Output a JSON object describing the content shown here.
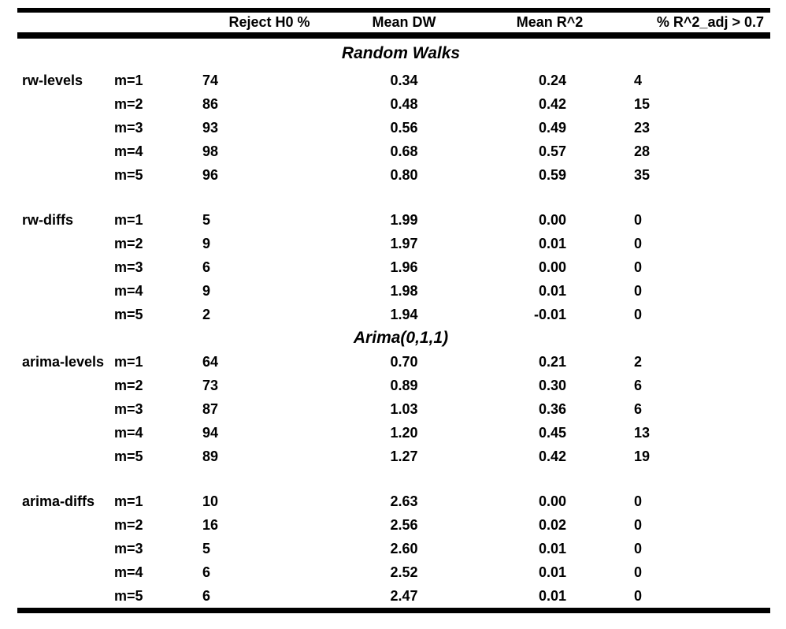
{
  "colors": {
    "background": "#ffffff",
    "text": "#000000",
    "rule": "#000000"
  },
  "table": {
    "columns": [
      "Reject H0 %",
      "Mean DW",
      "Mean R^2",
      "% R^2_adj > 0.7"
    ],
    "sections": [
      {
        "title": "Random Walks",
        "groups": [
          {
            "label": "rw-levels",
            "rows": [
              {
                "m": "m=1",
                "reject": "74",
                "dw": "0.34",
                "r2": "0.24",
                "r2adj": "4"
              },
              {
                "m": "m=2",
                "reject": "86",
                "dw": "0.48",
                "r2": "0.42",
                "r2adj": "15"
              },
              {
                "m": "m=3",
                "reject": "93",
                "dw": "0.56",
                "r2": "0.49",
                "r2adj": "23"
              },
              {
                "m": "m=4",
                "reject": "98",
                "dw": "0.68",
                "r2": "0.57",
                "r2adj": "28"
              },
              {
                "m": "m=5",
                "reject": "96",
                "dw": "0.80",
                "r2": "0.59",
                "r2adj": "35"
              }
            ]
          },
          {
            "label": "rw-diffs",
            "rows": [
              {
                "m": "m=1",
                "reject": "5",
                "dw": "1.99",
                "r2": "0.00",
                "r2adj": "0"
              },
              {
                "m": "m=2",
                "reject": "9",
                "dw": "1.97",
                "r2": "0.01",
                "r2adj": "0"
              },
              {
                "m": "m=3",
                "reject": "6",
                "dw": "1.96",
                "r2": "0.00",
                "r2adj": "0"
              },
              {
                "m": "m=4",
                "reject": "9",
                "dw": "1.98",
                "r2": "0.01",
                "r2adj": "0"
              },
              {
                "m": "m=5",
                "reject": "2",
                "dw": "1.94",
                "r2": "-0.01",
                "r2adj": "0"
              }
            ]
          }
        ]
      },
      {
        "title": "Arima(0,1,1)",
        "groups": [
          {
            "label": "arima-levels",
            "rows": [
              {
                "m": "m=1",
                "reject": "64",
                "dw": "0.70",
                "r2": "0.21",
                "r2adj": "2"
              },
              {
                "m": "m=2",
                "reject": "73",
                "dw": "0.89",
                "r2": "0.30",
                "r2adj": "6"
              },
              {
                "m": "m=3",
                "reject": "87",
                "dw": "1.03",
                "r2": "0.36",
                "r2adj": "6"
              },
              {
                "m": "m=4",
                "reject": "94",
                "dw": "1.20",
                "r2": "0.45",
                "r2adj": "13"
              },
              {
                "m": "m=5",
                "reject": "89",
                "dw": "1.27",
                "r2": "0.42",
                "r2adj": "19"
              }
            ]
          },
          {
            "label": "arima-diffs",
            "rows": [
              {
                "m": "m=1",
                "reject": "10",
                "dw": "2.63",
                "r2": "0.00",
                "r2adj": "0"
              },
              {
                "m": "m=2",
                "reject": "16",
                "dw": "2.56",
                "r2": "0.02",
                "r2adj": "0"
              },
              {
                "m": "m=3",
                "reject": "5",
                "dw": "2.60",
                "r2": "0.01",
                "r2adj": "0"
              },
              {
                "m": "m=4",
                "reject": "6",
                "dw": "2.52",
                "r2": "0.01",
                "r2adj": "0"
              },
              {
                "m": "m=5",
                "reject": "6",
                "dw": "2.47",
                "r2": "0.01",
                "r2adj": "0"
              }
            ]
          }
        ]
      }
    ]
  }
}
